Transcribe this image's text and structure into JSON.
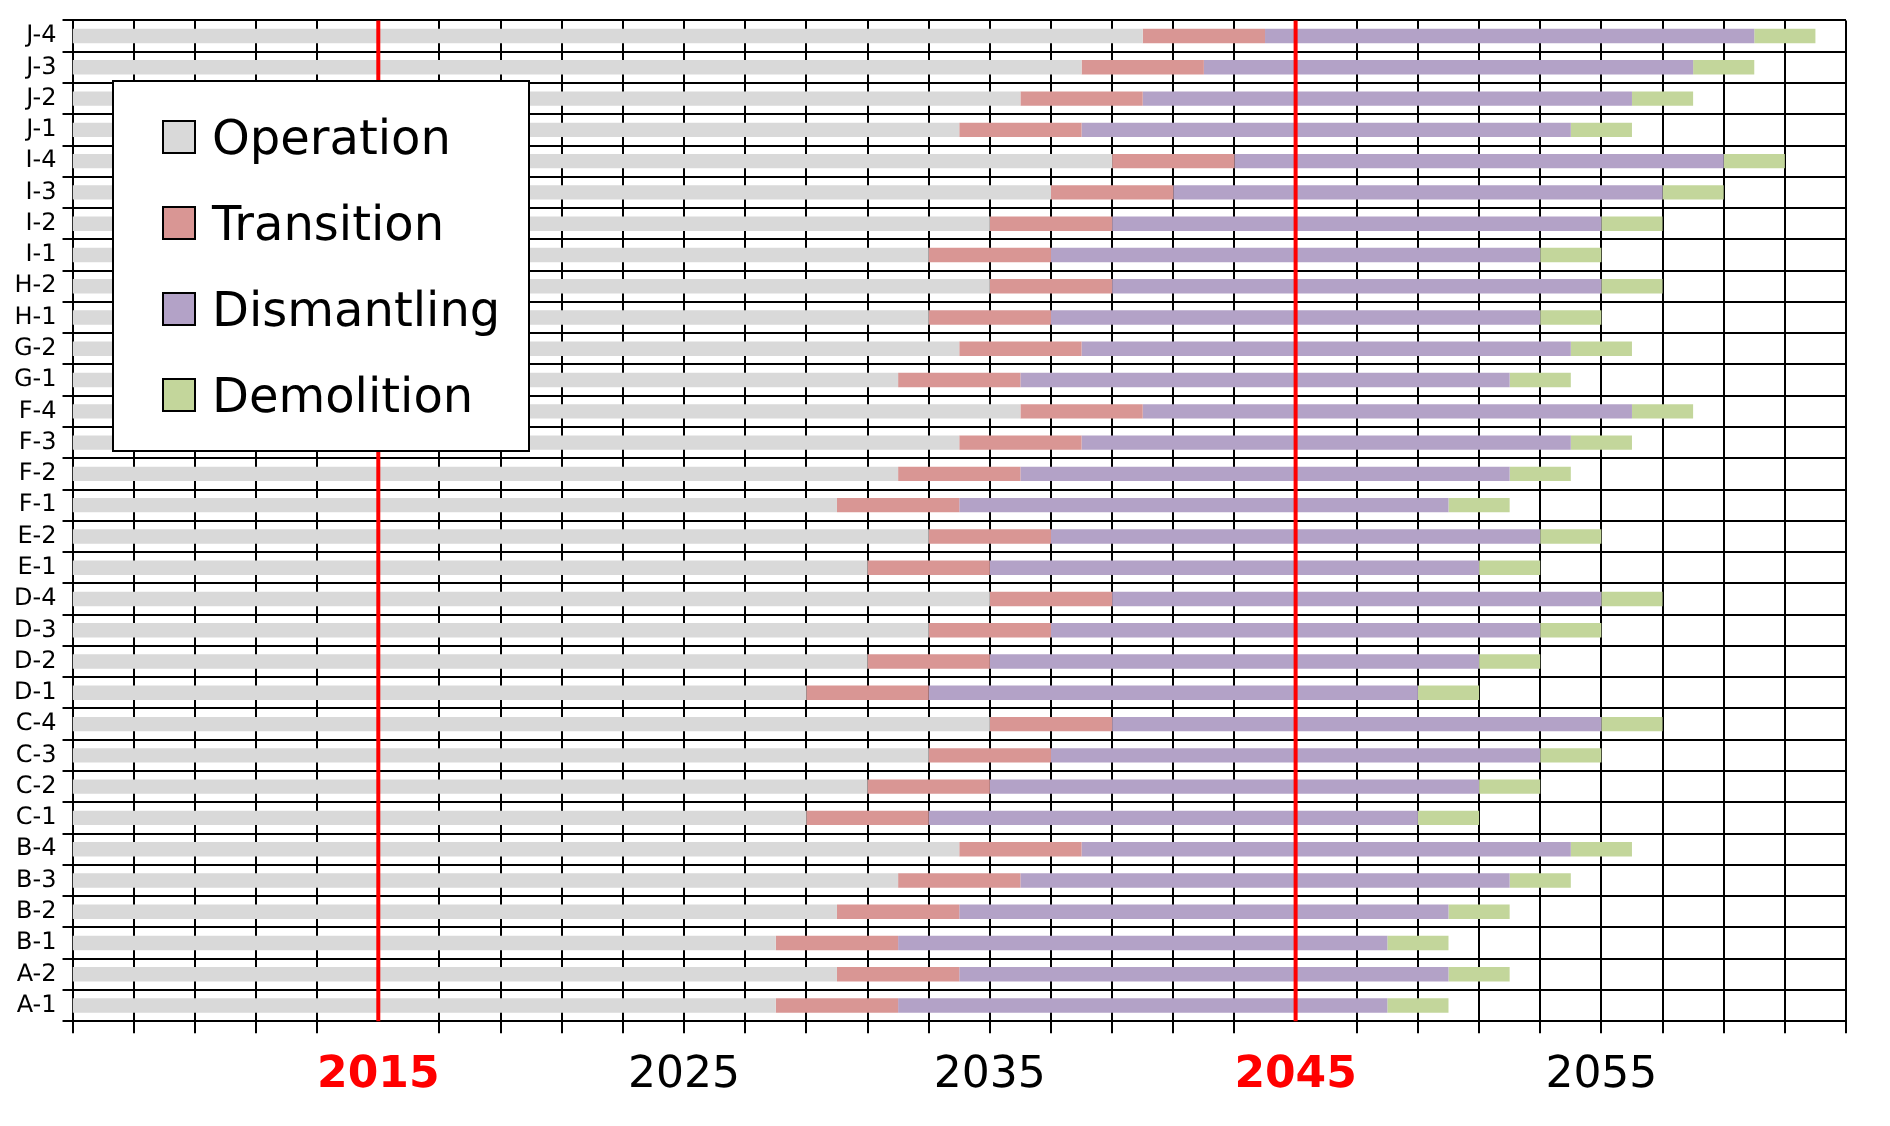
{
  "chart_data": {
    "type": "bar",
    "orientation": "horizontal",
    "categories": [
      "J-4",
      "J-3",
      "J-2",
      "J-1",
      "I-4",
      "I-3",
      "I-2",
      "I-1",
      "H-2",
      "H-1",
      "G-2",
      "G-1",
      "F-4",
      "F-3",
      "F-2",
      "F-1",
      "E-2",
      "E-1",
      "D-4",
      "D-3",
      "D-2",
      "D-1",
      "C-4",
      "C-3",
      "C-2",
      "C-1",
      "B-4",
      "B-3",
      "B-2",
      "B-1",
      "A-2",
      "A-1"
    ],
    "series": [
      {
        "name": "Operation",
        "color": "#d9d9d9",
        "base": [
          2005,
          2005,
          2005,
          2005,
          2005,
          2005,
          2005,
          2005,
          2005,
          2005,
          2005,
          2005,
          2005,
          2005,
          2005,
          2005,
          2005,
          2005,
          2005,
          2005,
          2005,
          2005,
          2005,
          2005,
          2005,
          2005,
          2005,
          2005,
          2005,
          2005,
          2005,
          2005
        ],
        "values": [
          35,
          33,
          31,
          29,
          34,
          32,
          30,
          28,
          30,
          28,
          29,
          27,
          31,
          29,
          27,
          25,
          28,
          26,
          30,
          28,
          26,
          24,
          30,
          28,
          26,
          24,
          29,
          27,
          25,
          23,
          25,
          23
        ]
      },
      {
        "name": "Transition",
        "color": "#d99694",
        "base": [
          2040,
          2038,
          2036,
          2034,
          2039,
          2037,
          2035,
          2033,
          2035,
          2033,
          2034,
          2032,
          2036,
          2034,
          2032,
          2030,
          2033,
          2031,
          2035,
          2033,
          2031,
          2029,
          2035,
          2033,
          2031,
          2029,
          2034,
          2032,
          2030,
          2028,
          2030,
          2028
        ],
        "values": [
          4,
          4,
          4,
          4,
          4,
          4,
          4,
          4,
          4,
          4,
          4,
          4,
          4,
          4,
          4,
          4,
          4,
          4,
          4,
          4,
          4,
          4,
          4,
          4,
          4,
          4,
          4,
          4,
          4,
          4,
          4,
          4
        ]
      },
      {
        "name": "Dismantling",
        "color": "#b3a2c7",
        "base": [
          2044,
          2042,
          2040,
          2038,
          2043,
          2041,
          2039,
          2037,
          2039,
          2037,
          2038,
          2036,
          2040,
          2038,
          2036,
          2034,
          2037,
          2035,
          2039,
          2037,
          2035,
          2033,
          2039,
          2037,
          2035,
          2033,
          2038,
          2036,
          2034,
          2032,
          2034,
          2032
        ],
        "values": [
          16,
          16,
          16,
          16,
          16,
          16,
          16,
          16,
          16,
          16,
          16,
          16,
          16,
          16,
          16,
          16,
          16,
          16,
          16,
          16,
          16,
          16,
          16,
          16,
          16,
          16,
          16,
          16,
          16,
          16,
          16,
          16
        ]
      },
      {
        "name": "Demolition",
        "color": "#c3d69b",
        "base": [
          2060,
          2058,
          2056,
          2054,
          2059,
          2057,
          2055,
          2053,
          2055,
          2053,
          2054,
          2052,
          2056,
          2054,
          2052,
          2050,
          2053,
          2051,
          2055,
          2053,
          2051,
          2049,
          2055,
          2053,
          2051,
          2049,
          2054,
          2052,
          2050,
          2048,
          2050,
          2048
        ],
        "values": [
          2,
          2,
          2,
          2,
          2,
          2,
          2,
          2,
          2,
          2,
          2,
          2,
          2,
          2,
          2,
          2,
          2,
          2,
          2,
          2,
          2,
          2,
          2,
          2,
          2,
          2,
          2,
          2,
          2,
          2,
          2,
          2
        ]
      }
    ],
    "xlim": [
      2005,
      2063
    ],
    "xticks": [
      {
        "value": 2005,
        "label": null
      },
      {
        "value": 2007,
        "label": null
      },
      {
        "value": 2009,
        "label": null
      },
      {
        "value": 2011,
        "label": null
      },
      {
        "value": 2013,
        "label": null
      },
      2015,
      {
        "value": 2017,
        "label": null
      },
      {
        "value": 2019,
        "label": null
      },
      {
        "value": 2021,
        "label": null
      },
      {
        "value": 2023,
        "label": null
      },
      2025,
      {
        "value": 2027,
        "label": null
      },
      {
        "value": 2029,
        "label": null
      },
      {
        "value": 2031,
        "label": null
      },
      {
        "value": 2033,
        "label": null
      },
      2035,
      {
        "value": 2037,
        "label": null
      },
      {
        "value": 2039,
        "label": null
      },
      {
        "value": 2041,
        "label": null
      },
      {
        "value": 2043,
        "label": null
      },
      2045,
      {
        "value": 2047,
        "label": null
      },
      {
        "value": 2049,
        "label": null
      },
      {
        "value": 2051,
        "label": null
      },
      {
        "value": 2053,
        "label": null
      },
      2055,
      {
        "value": 2057,
        "label": null
      },
      {
        "value": 2059,
        "label": null
      },
      {
        "value": 2061,
        "label": null
      },
      {
        "value": 2063,
        "label": null
      }
    ],
    "ref_lines": [
      {
        "axis": "x",
        "value": 2015,
        "color": "#ff0000"
      },
      {
        "axis": "x",
        "value": 2045,
        "color": "#ff0000"
      }
    ],
    "grid": true,
    "legend": "top left"
  }
}
